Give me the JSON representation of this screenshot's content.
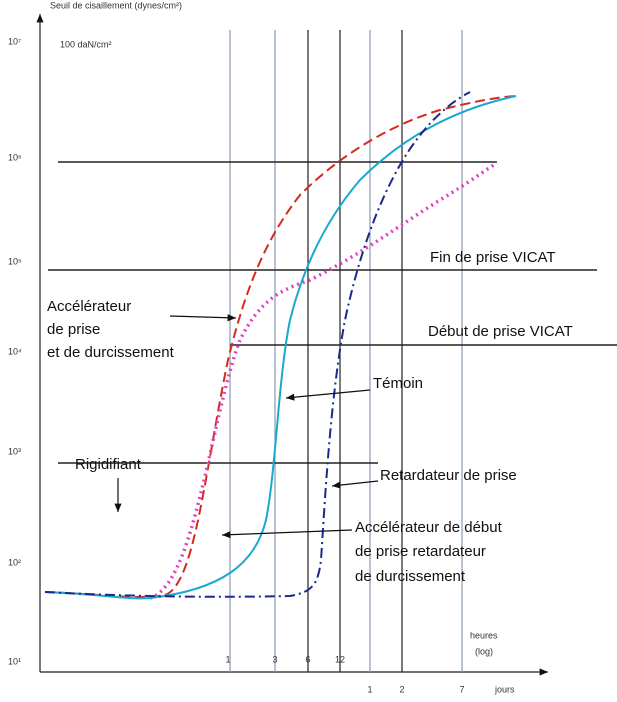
{
  "y_axis": {
    "title": "Seuil de cisaillement (dynes/cm²)",
    "note": "100 daN/cm²",
    "ticks": [
      "10⁷",
      "10⁶",
      "10⁵",
      "10⁴",
      "10³",
      "10²",
      "10¹"
    ]
  },
  "x_axis": {
    "hours_label": "heures",
    "hours_scale": "(log)",
    "hours_ticks": [
      "1",
      "3",
      "6",
      "12"
    ],
    "days_label": "jours",
    "days_ticks": [
      "1",
      "2",
      "7"
    ]
  },
  "levels": {
    "end_set": "Fin de prise VICAT",
    "start_set": "Début de prise VICAT"
  },
  "curves": {
    "accelerator": [
      "Accélérateur",
      "de prise",
      "et de durcissement"
    ],
    "control": "Témoin",
    "rigidifier": "Rigidifiant",
    "retarder": "Retardateur de prise",
    "mixed": [
      "Accélérateur de début",
      "de prise retardateur",
      "de durcissement"
    ]
  }
}
